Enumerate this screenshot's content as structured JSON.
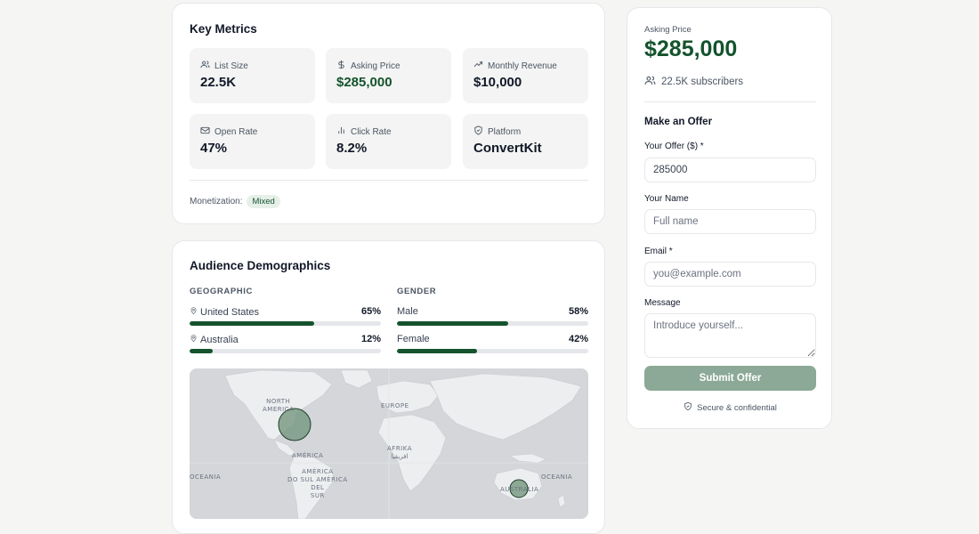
{
  "key_metrics": {
    "title": "Key Metrics",
    "items": [
      {
        "label": "List Size",
        "value": "22.5K",
        "icon": "users-icon"
      },
      {
        "label": "Asking Price",
        "value": "$285,000",
        "icon": "dollar-icon"
      },
      {
        "label": "Monthly Revenue",
        "value": "$10,000",
        "icon": "trending-up-icon"
      },
      {
        "label": "Open Rate",
        "value": "47%",
        "icon": "mail-icon"
      },
      {
        "label": "Click Rate",
        "value": "8.2%",
        "icon": "bar-chart-icon"
      },
      {
        "label": "Platform",
        "value": "ConvertKit",
        "icon": "shield-icon"
      }
    ],
    "monetization_label": "Monetization:",
    "monetization_value": "Mixed"
  },
  "demographics": {
    "title": "Audience Demographics",
    "geographic_label": "GEOGRAPHIC",
    "gender_label": "GENDER",
    "geographic": [
      {
        "label": "United States",
        "pct_text": "65%",
        "pct": 65
      },
      {
        "label": "Australia",
        "pct_text": "12%",
        "pct": 12
      }
    ],
    "gender": [
      {
        "label": "Male",
        "pct_text": "58%",
        "pct": 58
      },
      {
        "label": "Female",
        "pct_text": "42%",
        "pct": 42
      }
    ],
    "map_labels": {
      "north_america": "NORTH\nAMERICA",
      "europe": "EUROPE",
      "africa": "AFRIKA\nافريقيا",
      "america": "AMÉRICA",
      "south_america": "AMÉRICA\nDO SUL AMÉRICA\nDEL\nSUR",
      "oceania_left": "OCEANIA",
      "oceania_right": "OCEANIA",
      "australia": "AUSTRALIA"
    }
  },
  "offer": {
    "asking_label": "Asking Price",
    "price": "$285,000",
    "subscribers": "22.5K subscribers",
    "form_title": "Make an Offer",
    "offer_label": "Your Offer ($) *",
    "offer_value": "285000",
    "name_label": "Your Name",
    "name_placeholder": "Full name",
    "email_label": "Email *",
    "email_placeholder": "you@example.com",
    "message_label": "Message",
    "message_placeholder": "Introduce yourself...",
    "submit_label": "Submit Offer",
    "secure_text": "Secure & confidential"
  },
  "colors": {
    "brand_green": "#14532d",
    "button_disabled": "#8ba996",
    "map_bg": "#d4d6d9"
  }
}
